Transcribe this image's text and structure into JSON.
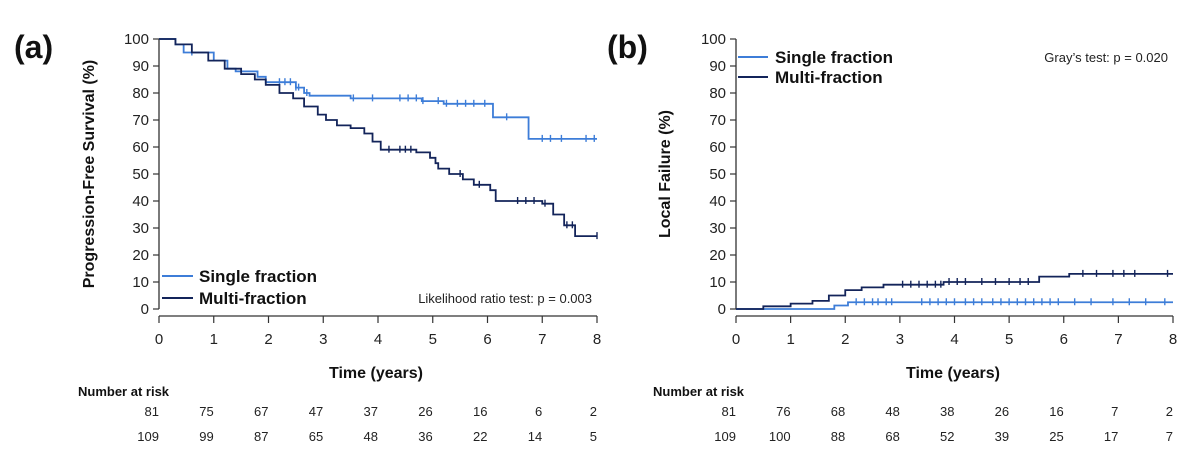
{
  "colors": {
    "single": "#3d7dd8",
    "multi": "#13245a",
    "axis": "#333333"
  },
  "chart_data": [
    {
      "type": "line",
      "panel_label": "(a)",
      "xlabel": "Time (years)",
      "ylabel": "Progression-Free Survival (%)",
      "xlim": [
        0,
        8
      ],
      "ylim": [
        0,
        100
      ],
      "xticks": [
        0,
        1,
        2,
        3,
        4,
        5,
        6,
        7,
        8
      ],
      "yticks": [
        0,
        10,
        20,
        30,
        40,
        50,
        60,
        70,
        80,
        90,
        100
      ],
      "grid": false,
      "legend_position": "bottom-left",
      "annotation": "Likelihood ratio test: p = 0.003",
      "series": [
        {
          "name": "Single fraction",
          "color_key": "single",
          "points": [
            [
              0,
              100
            ],
            [
              0.3,
              98
            ],
            [
              0.45,
              95
            ],
            [
              1.0,
              92
            ],
            [
              1.25,
              89
            ],
            [
              1.4,
              88
            ],
            [
              1.8,
              86
            ],
            [
              1.95,
              84
            ],
            [
              2.5,
              82
            ],
            [
              2.65,
              80
            ],
            [
              2.75,
              79
            ],
            [
              3.5,
              78
            ],
            [
              4.8,
              77
            ],
            [
              5.2,
              76
            ],
            [
              6.1,
              71
            ],
            [
              6.75,
              63
            ],
            [
              8,
              63
            ]
          ],
          "censor": [
            0.6,
            2.2,
            2.3,
            2.4,
            2.5,
            2.55,
            2.7,
            3.55,
            3.9,
            4.4,
            4.55,
            4.7,
            4.82,
            5.1,
            5.25,
            5.45,
            5.6,
            5.75,
            5.95,
            6.35,
            7.0,
            7.15,
            7.35,
            7.8,
            7.95
          ]
        },
        {
          "name": "Multi-fraction",
          "color_key": "multi",
          "points": [
            [
              0,
              100
            ],
            [
              0.3,
              98
            ],
            [
              0.6,
              95
            ],
            [
              0.9,
              92
            ],
            [
              1.2,
              89
            ],
            [
              1.5,
              87
            ],
            [
              1.75,
              85
            ],
            [
              1.95,
              83
            ],
            [
              2.2,
              80
            ],
            [
              2.45,
              78
            ],
            [
              2.65,
              75
            ],
            [
              2.9,
              72
            ],
            [
              3.05,
              70
            ],
            [
              3.25,
              68
            ],
            [
              3.5,
              67
            ],
            [
              3.75,
              65
            ],
            [
              3.9,
              62
            ],
            [
              4.05,
              59
            ],
            [
              4.7,
              58
            ],
            [
              4.95,
              56
            ],
            [
              5.05,
              54
            ],
            [
              5.1,
              52
            ],
            [
              5.3,
              50
            ],
            [
              5.55,
              48
            ],
            [
              5.75,
              46
            ],
            [
              6.05,
              44
            ],
            [
              6.15,
              40
            ],
            [
              7.0,
              39
            ],
            [
              7.2,
              35
            ],
            [
              7.4,
              31
            ],
            [
              7.6,
              27
            ],
            [
              8,
              27
            ]
          ],
          "censor": [
            4.2,
            4.4,
            4.5,
            4.6,
            5.5,
            5.85,
            6.55,
            6.7,
            6.85,
            7.05,
            7.45,
            7.55,
            8.0
          ]
        }
      ],
      "risk_table": {
        "title": "Number at risk",
        "times": [
          0,
          1,
          2,
          3,
          4,
          5,
          6,
          7,
          8
        ],
        "rows": [
          {
            "values": [
              "81",
              "75",
              "67",
              "47",
              "37",
              "26",
              "16",
              "6",
              "2"
            ]
          },
          {
            "values": [
              "109",
              "99",
              "87",
              "65",
              "48",
              "36",
              "22",
              "14",
              "5"
            ]
          }
        ]
      }
    },
    {
      "type": "line",
      "panel_label": "(b)",
      "xlabel": "Time (years)",
      "ylabel": "Local Failure (%)",
      "xlim": [
        0,
        8
      ],
      "ylim": [
        0,
        100
      ],
      "xticks": [
        0,
        1,
        2,
        3,
        4,
        5,
        6,
        7,
        8
      ],
      "yticks": [
        0,
        10,
        20,
        30,
        40,
        50,
        60,
        70,
        80,
        90,
        100
      ],
      "grid": false,
      "legend_position": "top-left",
      "annotation": "Gray’s test: p = 0.020",
      "series": [
        {
          "name": "Single fraction",
          "color_key": "single",
          "points": [
            [
              0,
              0
            ],
            [
              1.8,
              1.3
            ],
            [
              2.05,
              2.5
            ],
            [
              8,
              2.5
            ]
          ],
          "censor": [
            2.2,
            2.35,
            2.5,
            2.6,
            2.75,
            2.85,
            3.4,
            3.55,
            3.7,
            3.85,
            4.0,
            4.2,
            4.35,
            4.5,
            4.7,
            4.85,
            5.0,
            5.15,
            5.3,
            5.45,
            5.6,
            5.75,
            5.9,
            6.2,
            6.5,
            6.9,
            7.2,
            7.5,
            7.85
          ]
        },
        {
          "name": "Multi-fraction",
          "color_key": "multi",
          "points": [
            [
              0,
              0
            ],
            [
              0.5,
              1
            ],
            [
              1.0,
              2
            ],
            [
              1.4,
              3
            ],
            [
              1.7,
              5
            ],
            [
              2.0,
              7
            ],
            [
              2.3,
              8
            ],
            [
              2.7,
              9
            ],
            [
              3.8,
              10
            ],
            [
              5.55,
              12
            ],
            [
              6.1,
              13
            ],
            [
              8,
              13
            ]
          ],
          "censor": [
            3.05,
            3.2,
            3.35,
            3.5,
            3.65,
            3.75,
            3.9,
            4.05,
            4.2,
            4.5,
            4.75,
            5.0,
            5.2,
            5.35,
            6.35,
            6.6,
            6.9,
            7.1,
            7.3,
            7.9
          ]
        }
      ],
      "risk_table": {
        "title": "Number at risk",
        "times": [
          0,
          1,
          2,
          3,
          4,
          5,
          6,
          7,
          8
        ],
        "rows": [
          {
            "values": [
              "81",
              "76",
              "68",
              "48",
              "38",
              "26",
              "16",
              "7",
              "2"
            ]
          },
          {
            "values": [
              "109",
              "100",
              "88",
              "68",
              "52",
              "39",
              "25",
              "17",
              "7"
            ]
          }
        ]
      }
    }
  ]
}
